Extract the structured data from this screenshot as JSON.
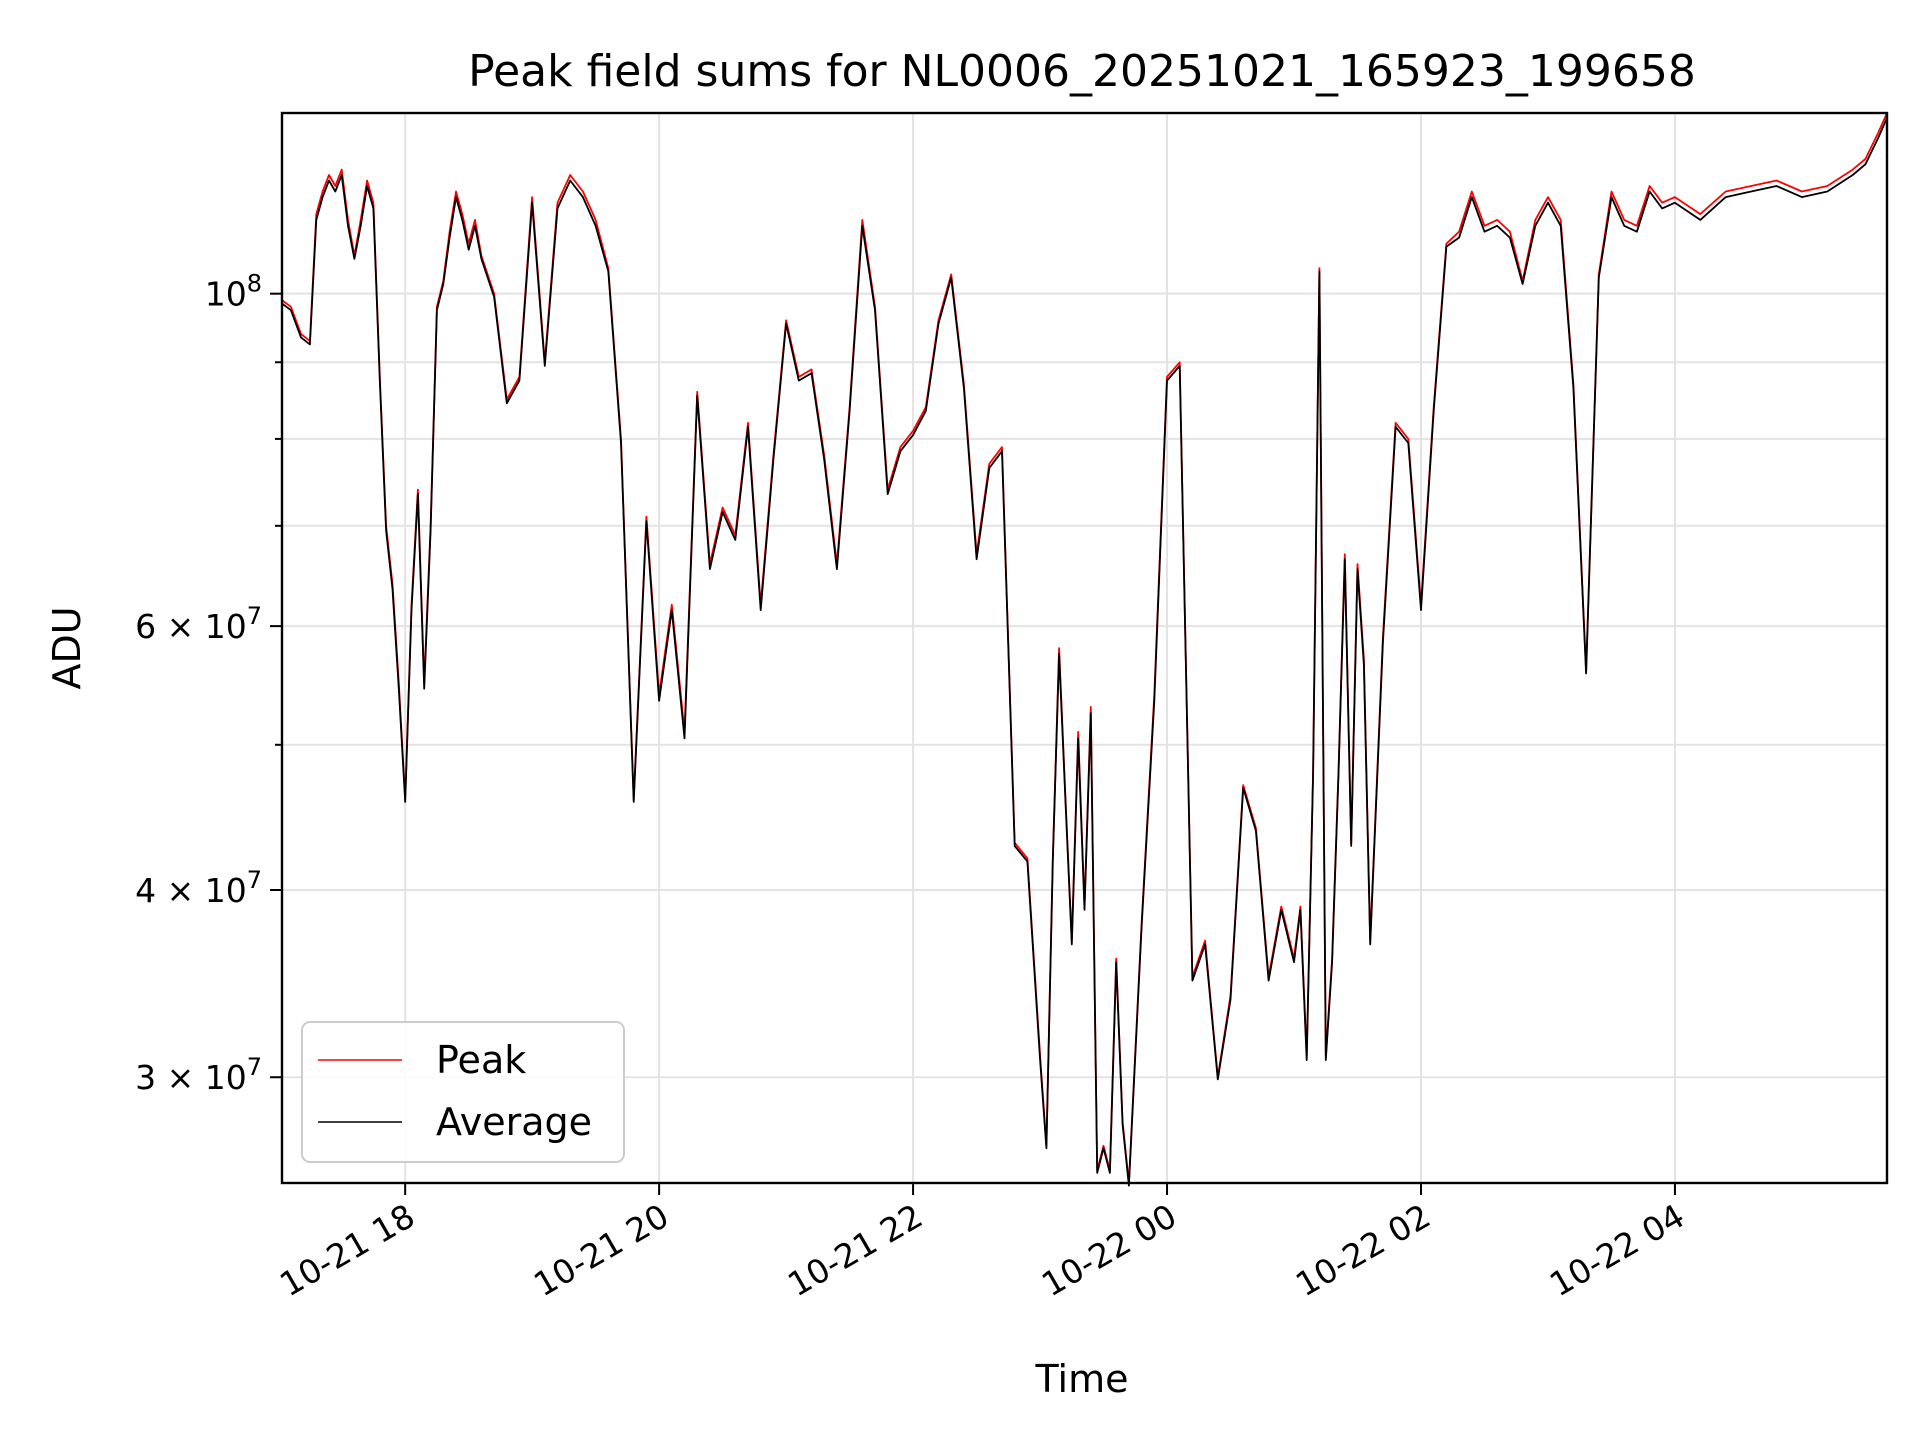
{
  "chart_data": {
    "type": "line",
    "title": "Peak field sums for NL0006_20251021_165923_199658",
    "xlabel": "Time",
    "ylabel": "ADU",
    "yscale": "log",
    "ylim": [
      25500000,
      132000000
    ],
    "xlim_hours": [
      -0.97,
      11.67
    ],
    "x_ticks": [
      {
        "label": "10-21 18",
        "hour": 0
      },
      {
        "label": "10-21 20",
        "hour": 2
      },
      {
        "label": "10-21 22",
        "hour": 4
      },
      {
        "label": "10-22 00",
        "hour": 6
      },
      {
        "label": "10-22 02",
        "hour": 8
      },
      {
        "label": "10-22 04",
        "hour": 10
      }
    ],
    "y_ticks": [
      {
        "value": 100000000,
        "base": "10",
        "exp": "8"
      },
      {
        "value": 60000000,
        "base": "6 × 10",
        "exp": "7"
      },
      {
        "value": 40000000,
        "base": "4 × 10",
        "exp": "7"
      },
      {
        "value": 30000000,
        "base": "3 × 10",
        "exp": "7"
      }
    ],
    "y_minor_ticks": [
      50000000,
      70000000,
      80000000,
      90000000
    ],
    "grid": true,
    "legend_position": "lower-left",
    "colors": {
      "peak": "#ff0000",
      "average": "#000000"
    },
    "series": [
      {
        "name": "Peak",
        "x_hours": [
          -0.97,
          -0.9,
          -0.82,
          -0.75,
          -0.7,
          -0.65,
          -0.6,
          -0.55,
          -0.5,
          -0.45,
          -0.4,
          -0.35,
          -0.3,
          -0.25,
          -0.2,
          -0.15,
          -0.1,
          -0.05,
          0.0,
          0.05,
          0.1,
          0.15,
          0.2,
          0.25,
          0.3,
          0.35,
          0.4,
          0.45,
          0.5,
          0.55,
          0.6,
          0.7,
          0.8,
          0.9,
          1.0,
          1.1,
          1.2,
          1.3,
          1.4,
          1.5,
          1.6,
          1.7,
          1.8,
          1.9,
          2.0,
          2.1,
          2.2,
          2.3,
          2.4,
          2.5,
          2.6,
          2.7,
          2.8,
          2.9,
          3.0,
          3.1,
          3.2,
          3.3,
          3.4,
          3.5,
          3.6,
          3.7,
          3.8,
          3.9,
          4.0,
          4.1,
          4.2,
          4.3,
          4.4,
          4.5,
          4.6,
          4.7,
          4.8,
          4.9,
          5.0,
          5.05,
          5.1,
          5.15,
          5.2,
          5.25,
          5.3,
          5.35,
          5.4,
          5.45,
          5.5,
          5.55,
          5.6,
          5.65,
          5.7,
          5.8,
          5.9,
          6.0,
          6.1,
          6.2,
          6.3,
          6.4,
          6.5,
          6.6,
          6.7,
          6.8,
          6.9,
          7.0,
          7.05,
          7.1,
          7.15,
          7.2,
          7.25,
          7.3,
          7.35,
          7.4,
          7.45,
          7.5,
          7.55,
          7.6,
          7.7,
          7.8,
          7.9,
          8.0,
          8.1,
          8.2,
          8.3,
          8.4,
          8.5,
          8.6,
          8.7,
          8.8,
          8.9,
          9.0,
          9.1,
          9.2,
          9.3,
          9.4,
          9.5,
          9.6,
          9.7,
          9.8,
          9.9,
          10.0,
          10.2,
          10.4,
          10.6,
          10.8,
          11.0,
          11.2,
          11.4,
          11.5,
          11.6,
          11.67
        ],
        "values": [
          99000000,
          98000000,
          94000000,
          93000000,
          113000000,
          117000000,
          120000000,
          118000000,
          121000000,
          112000000,
          106000000,
          112000000,
          119000000,
          115000000,
          88000000,
          70000000,
          64000000,
          55000000,
          46000000,
          62000000,
          74000000,
          55000000,
          70000000,
          98000000,
          102000000,
          110000000,
          117000000,
          113000000,
          108000000,
          112000000,
          106000000,
          100000000,
          85000000,
          88000000,
          116000000,
          90000000,
          115000000,
          120000000,
          117000000,
          112000000,
          104000000,
          80000000,
          46000000,
          71000000,
          54000000,
          62000000,
          51000000,
          86000000,
          66000000,
          72000000,
          69000000,
          82000000,
          62000000,
          78000000,
          96000000,
          88000000,
          89000000,
          78000000,
          66000000,
          84000000,
          112000000,
          98000000,
          74000000,
          79000000,
          81000000,
          84000000,
          96000000,
          103000000,
          87000000,
          67000000,
          77000000,
          79000000,
          43000000,
          42000000,
          31000000,
          27000000,
          42000000,
          58000000,
          46000000,
          37000000,
          51000000,
          39000000,
          53000000,
          26000000,
          27000000,
          26000000,
          36000000,
          28000000,
          25500000,
          38000000,
          54000000,
          88000000,
          90000000,
          35000000,
          37000000,
          30000000,
          34000000,
          47000000,
          44000000,
          35000000,
          39000000,
          36000000,
          39000000,
          31000000,
          48000000,
          104000000,
          31000000,
          36000000,
          48000000,
          67000000,
          43000000,
          66000000,
          57000000,
          37000000,
          59000000,
          82000000,
          80000000,
          62000000,
          84000000,
          108000000,
          110000000,
          117000000,
          111000000,
          112000000,
          110000000,
          102000000,
          112000000,
          116000000,
          112000000,
          87000000,
          56000000,
          103000000,
          117000000,
          112000000,
          111000000,
          118000000,
          115000000,
          116000000,
          113000000,
          117000000,
          118000000,
          119000000,
          117000000,
          118000000,
          121000000,
          123000000,
          128000000,
          132000000
        ]
      },
      {
        "name": "Average",
        "x_hours": [
          -0.97,
          -0.9,
          -0.82,
          -0.75,
          -0.7,
          -0.65,
          -0.6,
          -0.55,
          -0.5,
          -0.45,
          -0.4,
          -0.35,
          -0.3,
          -0.25,
          -0.2,
          -0.15,
          -0.1,
          -0.05,
          0.0,
          0.05,
          0.1,
          0.15,
          0.2,
          0.25,
          0.3,
          0.35,
          0.4,
          0.45,
          0.5,
          0.55,
          0.6,
          0.7,
          0.8,
          0.9,
          1.0,
          1.1,
          1.2,
          1.3,
          1.4,
          1.5,
          1.6,
          1.7,
          1.8,
          1.9,
          2.0,
          2.1,
          2.2,
          2.3,
          2.4,
          2.5,
          2.6,
          2.7,
          2.8,
          2.9,
          3.0,
          3.1,
          3.2,
          3.3,
          3.4,
          3.5,
          3.6,
          3.7,
          3.8,
          3.9,
          4.0,
          4.1,
          4.2,
          4.3,
          4.4,
          4.5,
          4.6,
          4.7,
          4.8,
          4.9,
          5.0,
          5.05,
          5.1,
          5.15,
          5.2,
          5.25,
          5.3,
          5.35,
          5.4,
          5.45,
          5.5,
          5.55,
          5.6,
          5.65,
          5.7,
          5.8,
          5.9,
          6.0,
          6.1,
          6.2,
          6.3,
          6.4,
          6.5,
          6.6,
          6.7,
          6.8,
          6.9,
          7.0,
          7.05,
          7.1,
          7.15,
          7.2,
          7.25,
          7.3,
          7.35,
          7.4,
          7.45,
          7.5,
          7.55,
          7.6,
          7.7,
          7.8,
          7.9,
          8.0,
          8.1,
          8.2,
          8.3,
          8.4,
          8.5,
          8.6,
          8.7,
          8.8,
          8.9,
          9.0,
          9.1,
          9.2,
          9.3,
          9.4,
          9.5,
          9.6,
          9.7,
          9.8,
          9.9,
          10.0,
          10.2,
          10.4,
          10.6,
          10.8,
          11.0,
          11.2,
          11.4,
          11.5,
          11.6,
          11.67
        ],
        "values": [
          98500000,
          97500000,
          93500000,
          92500000,
          112000000,
          116000000,
          119000000,
          117000000,
          120000000,
          111000000,
          105500000,
          111000000,
          118000000,
          114000000,
          87500000,
          69500000,
          63500000,
          54500000,
          45800000,
          61500000,
          73500000,
          54500000,
          69500000,
          97500000,
          101500000,
          109000000,
          116000000,
          112000000,
          107000000,
          111000000,
          105500000,
          99500000,
          84500000,
          87500000,
          115000000,
          89500000,
          114000000,
          119000000,
          116000000,
          111000000,
          103500000,
          79500000,
          45800000,
          70500000,
          53500000,
          61500000,
          50500000,
          85500000,
          65500000,
          71500000,
          68500000,
          81500000,
          61500000,
          77500000,
          95500000,
          87500000,
          88500000,
          77500000,
          65500000,
          83500000,
          111000000,
          97500000,
          73500000,
          78500000,
          80500000,
          83500000,
          95500000,
          102500000,
          86500000,
          66500000,
          76500000,
          78500000,
          42800000,
          41800000,
          30800000,
          26900000,
          41800000,
          57500000,
          45800000,
          36800000,
          50500000,
          38800000,
          52500000,
          25900000,
          26900000,
          25900000,
          35800000,
          27900000,
          25400000,
          37800000,
          53500000,
          87500000,
          89500000,
          34800000,
          36800000,
          29900000,
          33800000,
          46800000,
          43800000,
          34800000,
          38800000,
          35800000,
          38800000,
          30800000,
          47800000,
          103500000,
          30800000,
          35800000,
          47800000,
          66500000,
          42800000,
          65500000,
          56500000,
          36800000,
          58500000,
          81500000,
          79500000,
          61500000,
          83500000,
          107500000,
          109000000,
          116000000,
          110000000,
          111000000,
          109000000,
          101500000,
          111000000,
          115000000,
          111000000,
          86500000,
          55800000,
          102500000,
          116000000,
          111000000,
          110000000,
          117000000,
          114000000,
          115000000,
          112000000,
          116000000,
          117000000,
          118000000,
          116000000,
          117000000,
          120000000,
          122000000,
          127000000,
          131000000
        ]
      }
    ]
  }
}
